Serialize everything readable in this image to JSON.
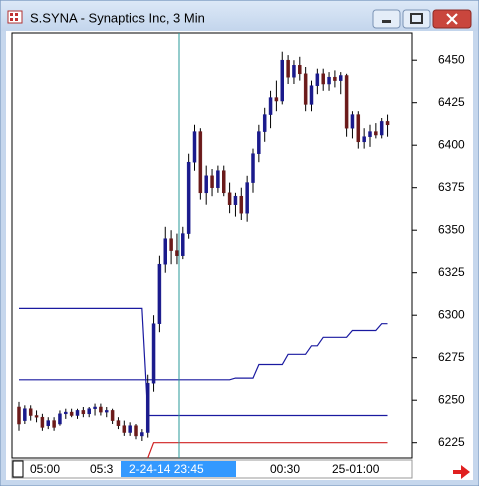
{
  "window": {
    "title": "S.SYNA - Synaptics Inc, 3 Min"
  },
  "chart_data": {
    "type": "candlestick",
    "up_color": "#1a1a8c",
    "down_color": "#6b1a1a",
    "open": [
      6246,
      6238,
      6245,
      6241,
      6240,
      6235,
      6238,
      6236,
      6242,
      6243,
      6241,
      6244,
      6242,
      6245,
      6246,
      6243,
      6244,
      6238,
      6235,
      6231,
      6235,
      6229,
      6231,
      6260,
      6295,
      6330,
      6345,
      6338,
      6335,
      6348,
      6390,
      6408,
      6372,
      6382,
      6375,
      6385,
      6372,
      6365,
      6370,
      6360,
      6378,
      6395,
      6408,
      6418,
      6428,
      6426,
      6450,
      6440,
      6447,
      6442,
      6424,
      6435,
      6442,
      6436,
      6440,
      6438,
      6441,
      6410,
      6418,
      6402,
      6405,
      6408,
      6406,
      6414
    ],
    "high": [
      6249,
      6247,
      6247,
      6244,
      6242,
      6240,
      6240,
      6244,
      6245,
      6245,
      6245,
      6246,
      6246,
      6248,
      6248,
      6246,
      6245,
      6240,
      6238,
      6237,
      6236,
      6233,
      6265,
      6300,
      6335,
      6352,
      6350,
      6348,
      6352,
      6395,
      6412,
      6410,
      6388,
      6386,
      6388,
      6388,
      6378,
      6372,
      6375,
      6382,
      6398,
      6412,
      6422,
      6432,
      6438,
      6455,
      6453,
      6450,
      6452,
      6446,
      6438,
      6445,
      6445,
      6443,
      6444,
      6443,
      6442,
      6420,
      6420,
      6410,
      6412,
      6413,
      6416,
      6418
    ],
    "low": [
      6232,
      6236,
      6238,
      6237,
      6232,
      6233,
      6232,
      6235,
      6239,
      6240,
      6239,
      6240,
      6240,
      6241,
      6241,
      6240,
      6236,
      6233,
      6229,
      6229,
      6227,
      6226,
      6228,
      6255,
      6290,
      6325,
      6330,
      6330,
      6333,
      6345,
      6385,
      6368,
      6365,
      6370,
      6372,
      6370,
      6360,
      6358,
      6356,
      6355,
      6372,
      6390,
      6402,
      6410,
      6420,
      6424,
      6436,
      6436,
      6438,
      6420,
      6420,
      6430,
      6432,
      6432,
      6434,
      6430,
      6405,
      6404,
      6398,
      6398,
      6399,
      6404,
      6404,
      6405
    ],
    "close": [
      6236,
      6245,
      6241,
      6240,
      6234,
      6238,
      6234,
      6242,
      6243,
      6241,
      6244,
      6242,
      6245,
      6246,
      6243,
      6244,
      6238,
      6235,
      6231,
      6235,
      6229,
      6231,
      6260,
      6295,
      6330,
      6345,
      6338,
      6335,
      6348,
      6390,
      6408,
      6372,
      6382,
      6375,
      6385,
      6372,
      6365,
      6370,
      6360,
      6378,
      6395,
      6408,
      6418,
      6428,
      6426,
      6450,
      6440,
      6447,
      6442,
      6424,
      6435,
      6442,
      6436,
      6440,
      6438,
      6441,
      6410,
      6418,
      6402,
      6405,
      6408,
      6406,
      6414,
      6412
    ],
    "overlays": [
      {
        "color": "#1a1aa0",
        "values": [
          6304,
          6304,
          6304,
          6304,
          6304,
          6304,
          6304,
          6304,
          6304,
          6304,
          6304,
          6304,
          6304,
          6304,
          6304,
          6304,
          6304,
          6304,
          6304,
          6304,
          6304,
          6304,
          6241,
          6241,
          6241,
          6241,
          6241,
          6241,
          6241,
          6241,
          6241,
          6241,
          6241,
          6241,
          6241,
          6241,
          6241,
          6241,
          6241,
          6241,
          6241,
          6241,
          6241,
          6241,
          6241,
          6241,
          6241,
          6241,
          6241,
          6241,
          6241,
          6241,
          6241,
          6241,
          6241,
          6241,
          6241,
          6241,
          6241,
          6241,
          6241,
          6241,
          6241,
          6241
        ]
      },
      {
        "color": "#1a1aa0",
        "values": [
          6262,
          6262,
          6262,
          6262,
          6262,
          6262,
          6262,
          6262,
          6262,
          6262,
          6262,
          6262,
          6262,
          6262,
          6262,
          6262,
          6262,
          6262,
          6262,
          6262,
          6262,
          6262,
          6262,
          6262,
          6262,
          6262,
          6262,
          6262,
          6262,
          6262,
          6262,
          6262,
          6262,
          6262,
          6262,
          6262,
          6262,
          6263,
          6263,
          6263,
          6263,
          6271,
          6271,
          6271,
          6271,
          6271,
          6277,
          6277,
          6277,
          6277,
          6282,
          6282,
          6287,
          6287,
          6287,
          6287,
          6287,
          6291,
          6291,
          6291,
          6291,
          6291,
          6295,
          6295
        ]
      },
      {
        "color": "#d02020",
        "values": [
          null,
          null,
          null,
          null,
          null,
          null,
          null,
          null,
          null,
          null,
          null,
          null,
          null,
          null,
          null,
          null,
          null,
          null,
          null,
          null,
          null,
          null,
          6216,
          6225,
          6225,
          6225,
          6225,
          6225,
          6225,
          6225,
          6225,
          6225,
          6225,
          6225,
          6225,
          6225,
          6225,
          6225,
          6225,
          6225,
          6225,
          6225,
          6225,
          6225,
          6225,
          6225,
          6225,
          6225,
          6225,
          6225,
          6225,
          6225,
          6225,
          6225,
          6225,
          6225,
          6225,
          6225,
          6225,
          6225,
          6225,
          6225,
          6225,
          6225
        ]
      }
    ],
    "ylim": [
      6216,
      6466
    ],
    "yticks": [
      6225,
      6250,
      6275,
      6300,
      6325,
      6350,
      6375,
      6400,
      6425,
      6450
    ],
    "x_tick_labels": [
      "05:00",
      "05:3",
      "00:30",
      "25-01:00"
    ],
    "cursor_label": "2-24-14 23:45"
  }
}
